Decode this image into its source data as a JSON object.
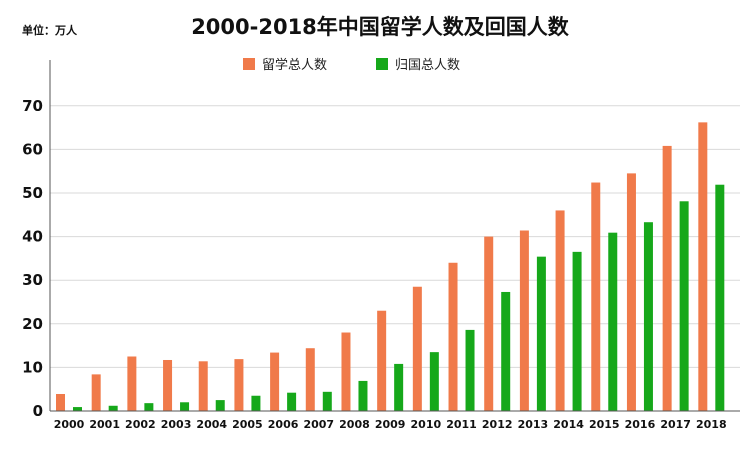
{
  "unit_label": "单位：万人",
  "chart_data": {
    "type": "bar",
    "title": "2000-2018年中国留学人数及回国人数",
    "xlabel": "",
    "ylabel": "",
    "ylim": [
      0,
      75
    ],
    "yticks": [
      0,
      10,
      20,
      30,
      40,
      50,
      60,
      70
    ],
    "grid": true,
    "legend_position": "top-center",
    "categories": [
      "2000",
      "2001",
      "2002",
      "2003",
      "2004",
      "2005",
      "2006",
      "2007",
      "2008",
      "2009",
      "2010",
      "2011",
      "2012",
      "2013",
      "2014",
      "2015",
      "2016",
      "2017",
      "2018"
    ],
    "series": [
      {
        "name": "留学总人数",
        "color": "#F07A4A",
        "values": [
          3.9,
          8.4,
          12.5,
          11.7,
          11.4,
          11.9,
          13.4,
          14.4,
          18.0,
          23.0,
          28.5,
          34.0,
          40.0,
          41.4,
          46.0,
          52.4,
          54.5,
          60.8,
          66.2
        ]
      },
      {
        "name": "归国总人数",
        "color": "#16A81A",
        "values": [
          0.9,
          1.2,
          1.8,
          2.0,
          2.5,
          3.5,
          4.2,
          4.4,
          6.9,
          10.8,
          13.5,
          18.6,
          27.3,
          35.4,
          36.5,
          40.9,
          43.3,
          48.1,
          51.9
        ]
      }
    ]
  }
}
